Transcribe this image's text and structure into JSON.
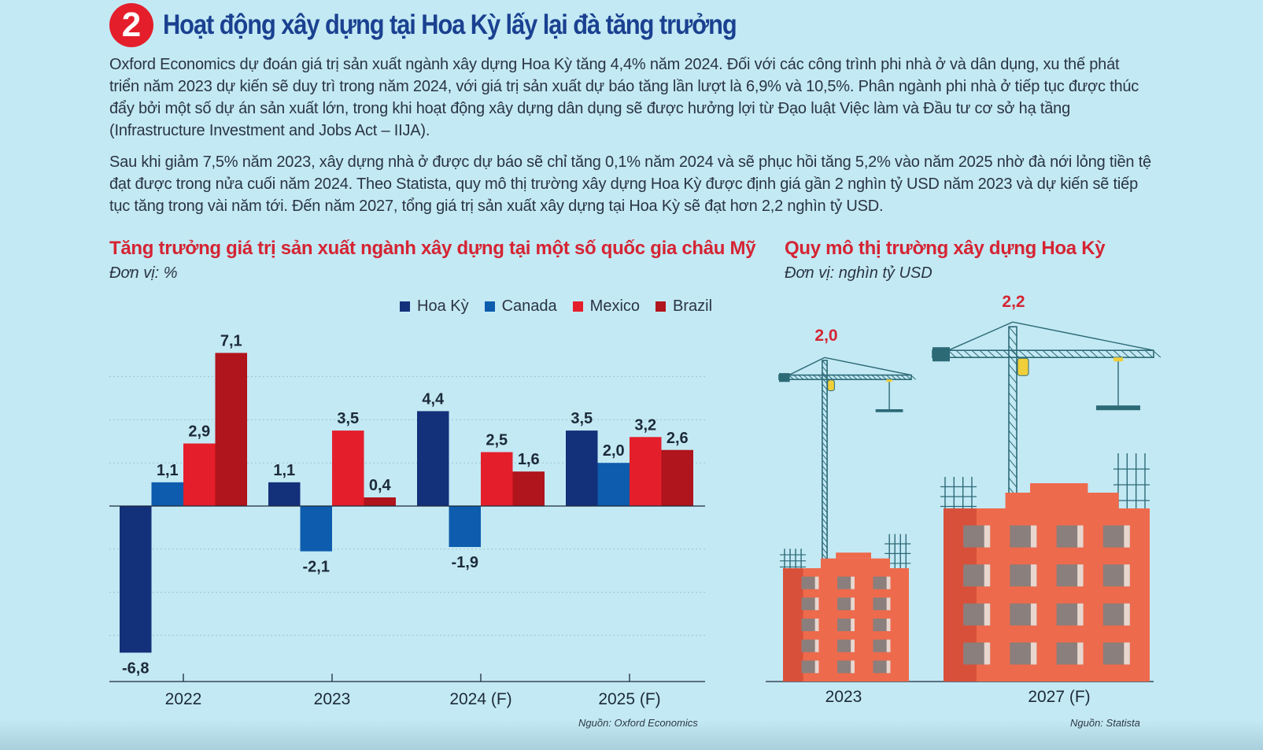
{
  "header": {
    "number": "2",
    "title": "Hoạt động xây dựng tại Hoa Kỳ lấy lại đà tăng trưởng"
  },
  "paragraphs": {
    "p1": "Oxford Economics dự đoán giá trị sản xuất ngành xây dựng Hoa Kỳ tăng 4,4% năm 2024. Đối với các công trình phi nhà ở và dân dụng, xu thế phát triển năm 2023 dự kiến sẽ duy trì trong năm 2024, với giá trị sản xuất dự báo tăng lần lượt là 6,9% và 10,5%. Phân ngành phi nhà ở tiếp tục được thúc đẩy bởi một số dự án sản xuất lớn, trong khi hoạt động xây dựng dân dụng sẽ được hưởng lợi từ Đạo luật Việc làm và Đầu tư cơ sở hạ tầng (Infrastructure Investment and Jobs Act – IIJA).",
    "p2": "Sau khi giảm 7,5% năm 2023, xây dựng nhà ở được dự báo sẽ chỉ tăng 0,1% năm 2024 và sẽ phục hồi tăng 5,2% vào năm 2025 nhờ đà nới lỏng tiền tệ đạt được trong nửa cuối năm 2024. Theo Statista, quy mô thị trường xây dựng Hoa Kỳ được định giá gần 2 nghìn tỷ USD năm 2023 và dự kiến sẽ tiếp tục tăng trong vài năm tới. Đến năm 2027, tổng giá trị sản xuất xây dựng tại Hoa Kỳ sẽ đạt hơn 2,2 nghìn tỷ USD."
  },
  "colors": {
    "background": "#c3e9f4",
    "accent_red": "#d52433",
    "title_blue": "#1a4190",
    "hoa_ky": "#13307a",
    "canada": "#0d5cad",
    "mexico": "#e41e2a",
    "brazil": "#b0141c",
    "brick": "#ee6a4c",
    "brick_dark": "#d9503a",
    "crane": "#2c6a76"
  },
  "chart_data": [
    {
      "type": "bar",
      "title": "Tăng trưởng giá trị sản xuất ngành xây dựng tại một số quốc gia châu Mỹ",
      "subtitle": "Đơn vị: %",
      "categories": [
        "2022",
        "2023",
        "2024 (F)",
        "2025 (F)"
      ],
      "series": [
        {
          "name": "Hoa Kỳ",
          "color": "#13307a",
          "values": [
            -6.8,
            1.1,
            4.4,
            3.5
          ],
          "labels": [
            "-6,8",
            "1,1",
            "4,4",
            "3,5"
          ]
        },
        {
          "name": "Canada",
          "color": "#0d5cad",
          "values": [
            1.1,
            -2.1,
            -1.9,
            2.0
          ],
          "labels": [
            "1,1",
            "-2,1",
            "-1,9",
            "2,0"
          ]
        },
        {
          "name": "Mexico",
          "color": "#e41e2a",
          "values": [
            2.9,
            3.5,
            2.5,
            3.2
          ],
          "labels": [
            "2,9",
            "3,5",
            "2,5",
            "3,2"
          ]
        },
        {
          "name": "Brazil",
          "color": "#b0141c",
          "values": [
            7.1,
            0.4,
            1.6,
            2.6
          ],
          "labels": [
            "7,1",
            "0,4",
            "1,6",
            "2,6"
          ]
        }
      ],
      "ylim": [
        -8,
        8
      ],
      "grid": true,
      "legend": "top-right",
      "source": "Nguồn: Oxford Economics"
    },
    {
      "type": "bar",
      "title": "Quy mô thị trường xây dựng Hoa Kỳ",
      "subtitle": "Đơn vị: nghìn tỷ USD",
      "categories": [
        "2023",
        "2027 (F)"
      ],
      "values": [
        2.0,
        2.2
      ],
      "labels": [
        "2,0",
        "2,2"
      ],
      "source": "Nguồn: Statista"
    }
  ]
}
